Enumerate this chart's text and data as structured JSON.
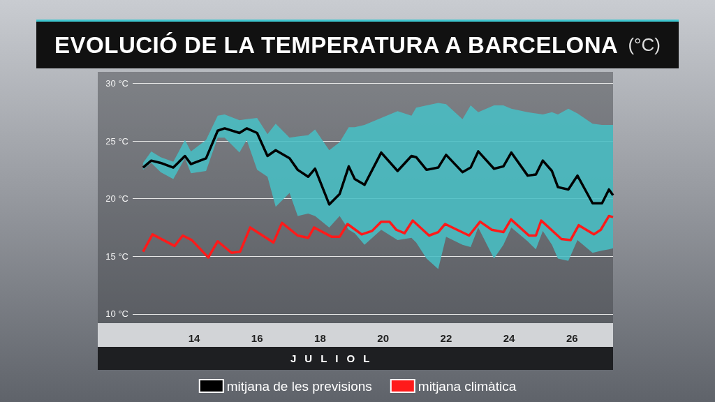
{
  "chart_data": {
    "type": "line",
    "title": "EVOLUCIÓ DE LA TEMPERATURA A BARCELONA",
    "subtitle": "(°C)",
    "xlabel": "JULIOL",
    "xlim": [
      12.05,
      27.3
    ],
    "xticks": [
      14,
      16,
      18,
      20,
      22,
      24,
      26
    ],
    "ylim": [
      9.2,
      31
    ],
    "yticks": [
      {
        "value": 10,
        "label": "10 °C"
      },
      {
        "value": 15,
        "label": "15 °C"
      },
      {
        "value": 20,
        "label": "20 °C"
      },
      {
        "value": 25,
        "label": "25 °C"
      },
      {
        "value": 30,
        "label": "30 °C"
      }
    ],
    "grid": "y",
    "legend": "bottom",
    "series": [
      {
        "name": "mitjana de les previsions",
        "color": "#000000",
        "x": [
          12.38,
          12.64,
          12.94,
          13.34,
          13.71,
          13.9,
          14.38,
          14.75,
          14.97,
          15.44,
          15.67,
          16.0,
          16.33,
          16.59,
          17.03,
          17.29,
          17.62,
          17.84,
          18.29,
          18.62,
          18.91,
          19.1,
          19.41,
          19.94,
          20.46,
          20.9,
          21.05,
          21.38,
          21.75,
          22.0,
          22.52,
          22.78,
          23.02,
          23.52,
          23.82,
          24.07,
          24.59,
          24.85,
          25.07,
          25.36,
          25.55,
          25.88,
          26.17,
          26.65,
          26.95,
          27.17,
          27.3
        ],
        "values": [
          22.7,
          23.3,
          23.1,
          22.7,
          23.7,
          23.0,
          23.5,
          25.9,
          26.1,
          25.7,
          26.1,
          25.7,
          23.7,
          24.2,
          23.5,
          22.5,
          21.9,
          22.6,
          19.5,
          20.4,
          22.8,
          21.7,
          21.2,
          24.0,
          22.4,
          23.7,
          23.6,
          22.5,
          22.7,
          23.8,
          22.3,
          22.7,
          24.1,
          22.6,
          22.8,
          24.0,
          22.0,
          22.1,
          23.3,
          22.4,
          21.0,
          20.8,
          22.0,
          19.6,
          19.6,
          20.8,
          20.3
        ],
        "upper": [
          23.1,
          24.1,
          23.6,
          23.2,
          25.1,
          24.1,
          25.1,
          27.2,
          27.3,
          26.8,
          26.9,
          27.0,
          25.6,
          26.5,
          25.3,
          25.4,
          25.5,
          26.0,
          24.2,
          24.9,
          26.2,
          26.2,
          26.4,
          27.0,
          27.6,
          27.2,
          27.9,
          28.1,
          28.3,
          28.2,
          26.9,
          28.1,
          27.5,
          28.1,
          28.1,
          27.8,
          27.5,
          27.4,
          27.3,
          27.5,
          27.3,
          27.8,
          27.4,
          26.5,
          26.4,
          26.4,
          26.4
        ],
        "lower": [
          22.5,
          23.1,
          22.3,
          21.7,
          23.5,
          22.2,
          22.4,
          25.3,
          25.3,
          24.0,
          25.1,
          22.5,
          21.9,
          19.3,
          20.5,
          18.5,
          18.7,
          18.5,
          17.5,
          18.5,
          17.3,
          17.0,
          16.0,
          17.3,
          16.4,
          16.6,
          16.2,
          14.8,
          13.9,
          16.7,
          16.0,
          15.8,
          17.5,
          14.8,
          16.0,
          17.5,
          16.3,
          15.6,
          17.2,
          16.0,
          14.8,
          14.6,
          16.4,
          15.3,
          15.5,
          15.6,
          15.7
        ]
      },
      {
        "name": "mitjana climàtica",
        "color": "#ff1a1a",
        "x": [
          12.38,
          12.68,
          13.38,
          13.64,
          13.93,
          14.45,
          14.75,
          15.19,
          15.46,
          15.78,
          16.52,
          16.79,
          17.29,
          17.62,
          17.81,
          18.36,
          18.62,
          18.87,
          19.32,
          19.65,
          19.94,
          20.2,
          20.42,
          20.68,
          20.94,
          21.46,
          21.75,
          21.97,
          22.73,
          23.08,
          23.45,
          23.82,
          24.06,
          24.63,
          24.85,
          25.02,
          25.66,
          25.95,
          26.21,
          26.69,
          26.91,
          27.17,
          27.3
        ],
        "values": [
          15.4,
          16.9,
          15.9,
          16.8,
          16.4,
          14.9,
          16.3,
          15.3,
          15.4,
          17.5,
          16.2,
          17.9,
          16.8,
          16.6,
          17.5,
          16.7,
          16.7,
          17.8,
          16.9,
          17.2,
          18.0,
          18.0,
          17.3,
          17.0,
          18.1,
          16.8,
          17.1,
          17.8,
          16.8,
          18.0,
          17.3,
          17.1,
          18.2,
          16.8,
          16.8,
          18.1,
          16.5,
          16.4,
          17.7,
          16.9,
          17.3,
          18.5,
          18.4
        ]
      }
    ]
  }
}
